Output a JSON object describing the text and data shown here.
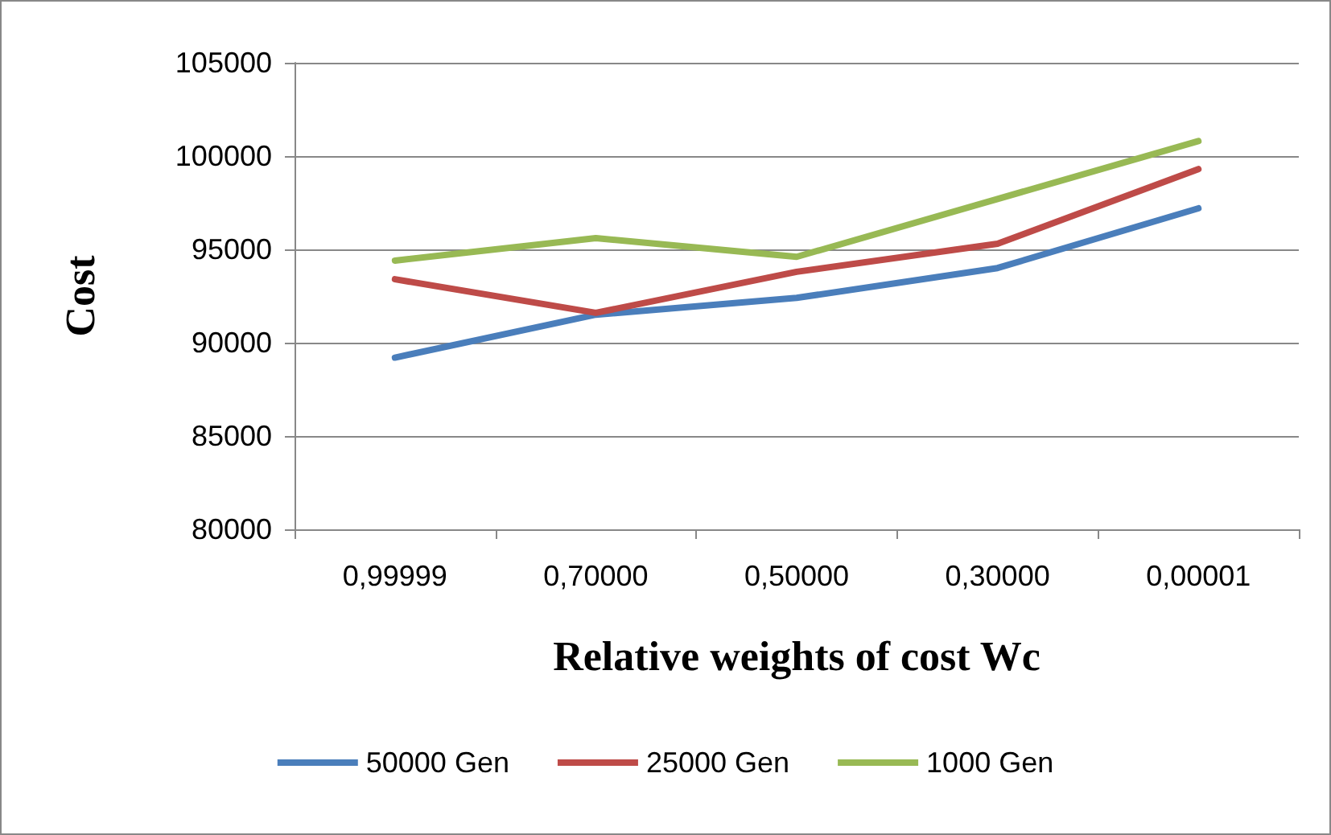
{
  "chart_data": {
    "type": "line",
    "xlabel": "Relative weights of cost Wc",
    "ylabel": "Cost",
    "categories": [
      "0,99999",
      "0,70000",
      "0,50000",
      "0,30000",
      "0,00001"
    ],
    "series": [
      {
        "name": "50000 Gen",
        "color": "#4a7ebb",
        "values": [
          89200,
          91500,
          92400,
          94000,
          97200
        ]
      },
      {
        "name": "25000 Gen",
        "color": "#be4b48",
        "values": [
          93400,
          91600,
          93800,
          95300,
          99300
        ]
      },
      {
        "name": "1000 Gen",
        "color": "#98b954",
        "values": [
          94400,
          95600,
          94600,
          97700,
          100800
        ]
      }
    ],
    "ylim": [
      80000,
      105000
    ],
    "yticks": [
      80000,
      85000,
      90000,
      95000,
      100000,
      105000
    ],
    "grid": "y",
    "legend": "bottom",
    "marker": "none",
    "line_style": "solid"
  }
}
